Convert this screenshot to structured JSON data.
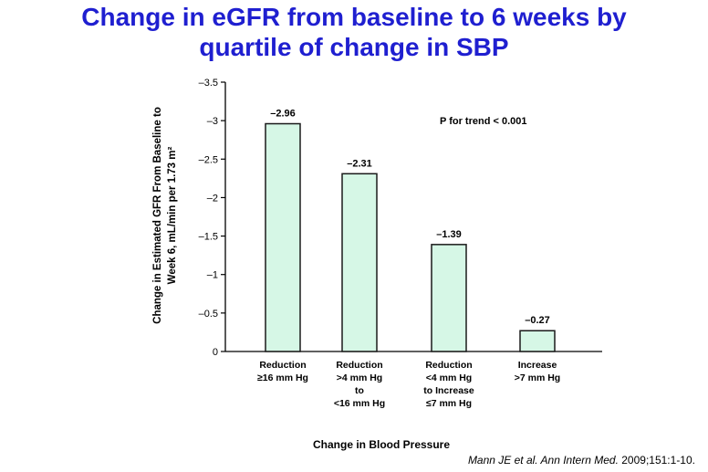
{
  "slide": {
    "title_line1": "Change in eGFR from baseline to 6 weeks by",
    "title_line2": "quartile of change in SBP",
    "title_color": "#1f1fd0"
  },
  "citation": {
    "authors_journal": "Mann JE et al. Ann Intern Med.",
    "details": " 2009;151:1-10."
  },
  "chart_data": {
    "type": "bar",
    "categories": [
      [
        "Reduction",
        "≥16 mm Hg"
      ],
      [
        "Reduction",
        ">4 mm Hg",
        "to",
        "<16 mm Hg"
      ],
      [
        "Reduction",
        "<4 mm Hg",
        "to Increase",
        "≤7 mm Hg"
      ],
      [
        "Increase",
        ">7 mm Hg"
      ]
    ],
    "values": [
      -2.96,
      -2.31,
      -1.39,
      -0.27
    ],
    "data_labels": [
      "–2.96",
      "–2.31",
      "–1.39",
      "–0.27"
    ],
    "xlabel": "Change in Blood Pressure",
    "ylabel_line1": "Change in Estimated GFR From Baseline to",
    "ylabel_line2": "Week 6, mL/min per 1.73 m²",
    "yticks": [
      0,
      -0.5,
      -1,
      -1.5,
      -2,
      -2.5,
      -3,
      -3.5
    ],
    "ytick_labels": [
      "0",
      "–0.5",
      "–1",
      "–1.5",
      "–2",
      "–2.5",
      "–3",
      "–3.5"
    ],
    "ylim": [
      0,
      -3.5
    ],
    "annotation": "P for trend < 0.001",
    "bar_fill": "#d6f7e6",
    "bar_stroke": "#1a1a1a",
    "grid": false,
    "legend": "none"
  }
}
